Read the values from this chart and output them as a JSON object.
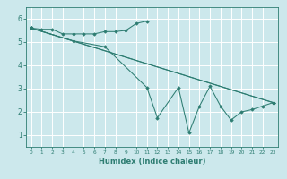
{
  "xlabel": "Humidex (Indice chaleur)",
  "background_color": "#cce8ec",
  "grid_color": "#ffffff",
  "line_color": "#2e7d72",
  "xlim": [
    -0.5,
    23.5
  ],
  "ylim": [
    0.5,
    6.5
  ],
  "yticks": [
    1,
    2,
    3,
    4,
    5,
    6
  ],
  "xticks": [
    0,
    1,
    2,
    3,
    4,
    5,
    6,
    7,
    8,
    9,
    10,
    11,
    12,
    13,
    14,
    15,
    16,
    17,
    18,
    19,
    20,
    21,
    22,
    23
  ],
  "series": [
    {
      "x": [
        0,
        1,
        2,
        3,
        4,
        5,
        6,
        7,
        8,
        9,
        10,
        11
      ],
      "y": [
        5.6,
        5.55,
        5.55,
        5.35,
        5.35,
        5.35,
        5.35,
        5.45,
        5.45,
        5.5,
        5.8,
        5.9
      ]
    },
    {
      "x": [
        0,
        4,
        7,
        11,
        12,
        14,
        15,
        16,
        17,
        18,
        19,
        20,
        21,
        22,
        23
      ],
      "y": [
        5.6,
        5.05,
        4.8,
        3.05,
        1.75,
        3.05,
        1.1,
        2.25,
        3.1,
        2.25,
        1.65,
        2.0,
        2.1,
        2.25,
        2.4
      ]
    },
    {
      "x": [
        0,
        23
      ],
      "y": [
        5.6,
        2.4
      ]
    },
    {
      "x": [
        0,
        23
      ],
      "y": [
        5.6,
        2.4
      ]
    }
  ]
}
